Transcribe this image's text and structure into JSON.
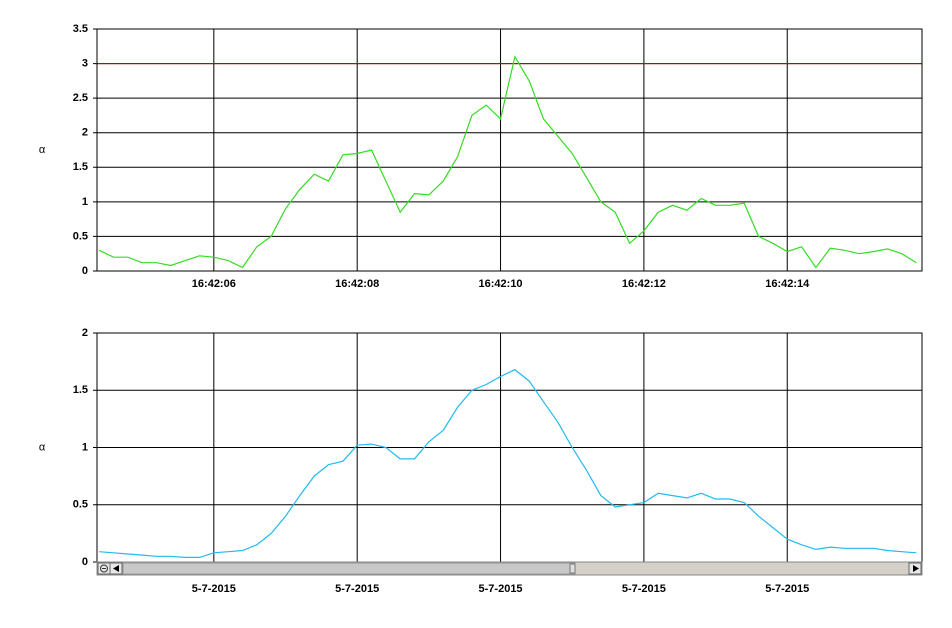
{
  "chart_data": [
    {
      "type": "line",
      "ylabel": "α",
      "color": "#33dd22",
      "x": [
        4.4,
        4.6,
        4.8,
        5.0,
        5.2,
        5.4,
        5.6,
        5.8,
        6.0,
        6.2,
        6.4,
        6.6,
        6.8,
        7.0,
        7.2,
        7.4,
        7.6,
        7.8,
        8.0,
        8.2,
        8.4,
        8.6,
        8.8,
        9.0,
        9.2,
        9.4,
        9.6,
        9.8,
        10.0,
        10.2,
        10.4,
        10.6,
        10.8,
        11.0,
        11.2,
        11.4,
        11.6,
        11.8,
        12.0,
        12.2,
        12.4,
        12.6,
        12.8,
        13.0,
        13.2,
        13.4,
        13.6,
        13.8,
        14.0,
        14.2,
        14.4,
        14.6,
        14.8,
        15.0,
        15.2,
        15.4,
        15.6,
        15.8
      ],
      "values": [
        0.3,
        0.2,
        0.2,
        0.12,
        0.12,
        0.08,
        0.15,
        0.22,
        0.2,
        0.15,
        0.05,
        0.35,
        0.5,
        0.9,
        1.18,
        1.4,
        1.3,
        1.68,
        1.7,
        1.75,
        1.3,
        0.85,
        1.12,
        1.1,
        1.3,
        1.65,
        2.25,
        2.4,
        2.2,
        3.1,
        2.75,
        2.2,
        1.95,
        1.7,
        1.35,
        1.0,
        0.85,
        0.4,
        0.58,
        0.85,
        0.95,
        0.88,
        1.05,
        0.95,
        0.95,
        0.98,
        0.5,
        0.4,
        0.28,
        0.35,
        0.05,
        0.33,
        0.3,
        0.25,
        0.28,
        0.32,
        0.25,
        0.12
      ],
      "xlim": [
        4.37,
        15.88
      ],
      "ylim": [
        0,
        3.5
      ],
      "xticks": [
        {
          "value": 6,
          "label": "16:42:06"
        },
        {
          "value": 8,
          "label": "16:42:08"
        },
        {
          "value": 10,
          "label": "16:42:10"
        },
        {
          "value": 12,
          "label": "16:42:12"
        },
        {
          "value": 14,
          "label": "16:42:14"
        }
      ],
      "yticks": [
        0,
        0.5,
        1,
        1.5,
        2,
        2.5,
        3,
        3.5
      ],
      "grid": true,
      "hlines": [
        {
          "value": 3,
          "color": "#cc0000"
        }
      ]
    },
    {
      "type": "line",
      "ylabel": "α",
      "color": "#22bbee",
      "x": [
        4.4,
        4.6,
        4.8,
        5.0,
        5.2,
        5.4,
        5.6,
        5.8,
        6.0,
        6.2,
        6.4,
        6.6,
        6.8,
        7.0,
        7.2,
        7.4,
        7.6,
        7.8,
        8.0,
        8.2,
        8.4,
        8.6,
        8.8,
        9.0,
        9.2,
        9.4,
        9.6,
        9.8,
        10.0,
        10.2,
        10.4,
        10.6,
        10.8,
        11.0,
        11.2,
        11.4,
        11.6,
        11.8,
        12.0,
        12.2,
        12.4,
        12.6,
        12.8,
        13.0,
        13.2,
        13.4,
        13.6,
        13.8,
        14.0,
        14.2,
        14.4,
        14.6,
        14.8,
        15.0,
        15.2,
        15.4,
        15.6,
        15.8
      ],
      "values": [
        0.09,
        0.08,
        0.07,
        0.06,
        0.05,
        0.05,
        0.04,
        0.04,
        0.08,
        0.09,
        0.1,
        0.15,
        0.25,
        0.4,
        0.58,
        0.75,
        0.85,
        0.88,
        1.02,
        1.03,
        1.0,
        0.9,
        0.9,
        1.05,
        1.15,
        1.35,
        1.5,
        1.55,
        1.62,
        1.68,
        1.58,
        1.4,
        1.22,
        1.0,
        0.8,
        0.58,
        0.48,
        0.5,
        0.52,
        0.6,
        0.58,
        0.56,
        0.6,
        0.55,
        0.55,
        0.52,
        0.4,
        0.3,
        0.2,
        0.15,
        0.11,
        0.13,
        0.12,
        0.12,
        0.12,
        0.1,
        0.09,
        0.08
      ],
      "xlim": [
        4.37,
        15.88
      ],
      "ylim": [
        0,
        2
      ],
      "xticks": [
        {
          "value": 6,
          "label": "5-7-2015"
        },
        {
          "value": 8,
          "label": "5-7-2015"
        },
        {
          "value": 10,
          "label": "5-7-2015"
        },
        {
          "value": 12,
          "label": "5-7-2015"
        },
        {
          "value": 14,
          "label": "5-7-2015"
        }
      ],
      "yticks": [
        0,
        0.5,
        1,
        1.5,
        2
      ],
      "grid": true,
      "hlines": [
        {
          "value": 2,
          "color": "#cc0000"
        }
      ]
    }
  ]
}
